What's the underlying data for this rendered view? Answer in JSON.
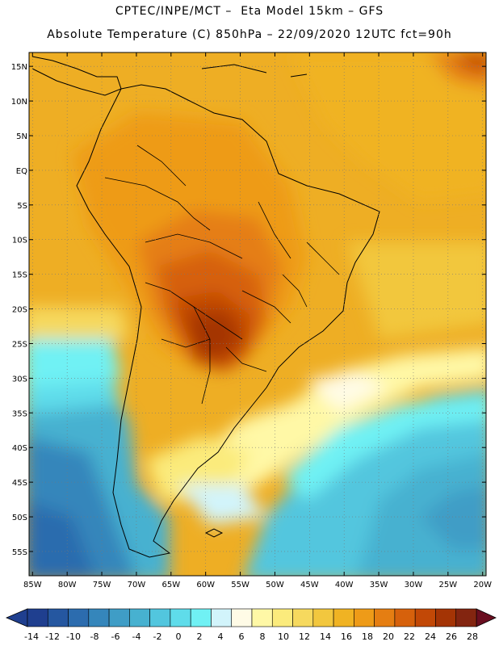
{
  "header": {
    "line1": "CPTEC/INPE/MCT –  Eta Model 15km – GFS",
    "line2": "Absolute Temperature (C) 850hPa – 22/09/2020 12UTC fct=90h"
  },
  "map": {
    "lat_labels": [
      "15N",
      "10N",
      "5N",
      "EQ",
      "5S",
      "10S",
      "15S",
      "20S",
      "25S",
      "30S",
      "35S",
      "40S",
      "45S",
      "50S",
      "55S"
    ],
    "lon_labels": [
      "85W",
      "80W",
      "75W",
      "70W",
      "65W",
      "60W",
      "55W",
      "50W",
      "45W",
      "40W",
      "35W",
      "30W",
      "25W",
      "20W"
    ],
    "lat_values": [
      15,
      10,
      5,
      0,
      -5,
      -10,
      -15,
      -20,
      -25,
      -30,
      -35,
      -40,
      -45,
      -50,
      -55
    ],
    "lon_values": [
      -85,
      -80,
      -75,
      -70,
      -65,
      -60,
      -55,
      -50,
      -45,
      -40,
      -35,
      -30,
      -25,
      -20
    ],
    "extent": {
      "lon_min": -85.5,
      "lon_max": -19.5,
      "lat_min": -58.5,
      "lat_max": 17
    }
  },
  "colorbar": {
    "labels": [
      "-14",
      "-12",
      "-10",
      "-8",
      "-6",
      "-4",
      "-2",
      "0",
      "2",
      "4",
      "6",
      "8",
      "10",
      "12",
      "14",
      "16",
      "18",
      "20",
      "22",
      "24",
      "26",
      "28"
    ],
    "colors": [
      "#1f3f8f",
      "#2557a0",
      "#2c6cae",
      "#3586bb",
      "#3f9dc6",
      "#47b1d0",
      "#52c6de",
      "#5fdcea",
      "#70f1f4",
      "#d2f4fb",
      "#fffbe6",
      "#fff8a6",
      "#fbeb7c",
      "#f6d95e",
      "#f2c73e",
      "#f0b323",
      "#ee9b18",
      "#e57e12",
      "#d6610c",
      "#c24806",
      "#a43405",
      "#832510"
    ]
  }
}
